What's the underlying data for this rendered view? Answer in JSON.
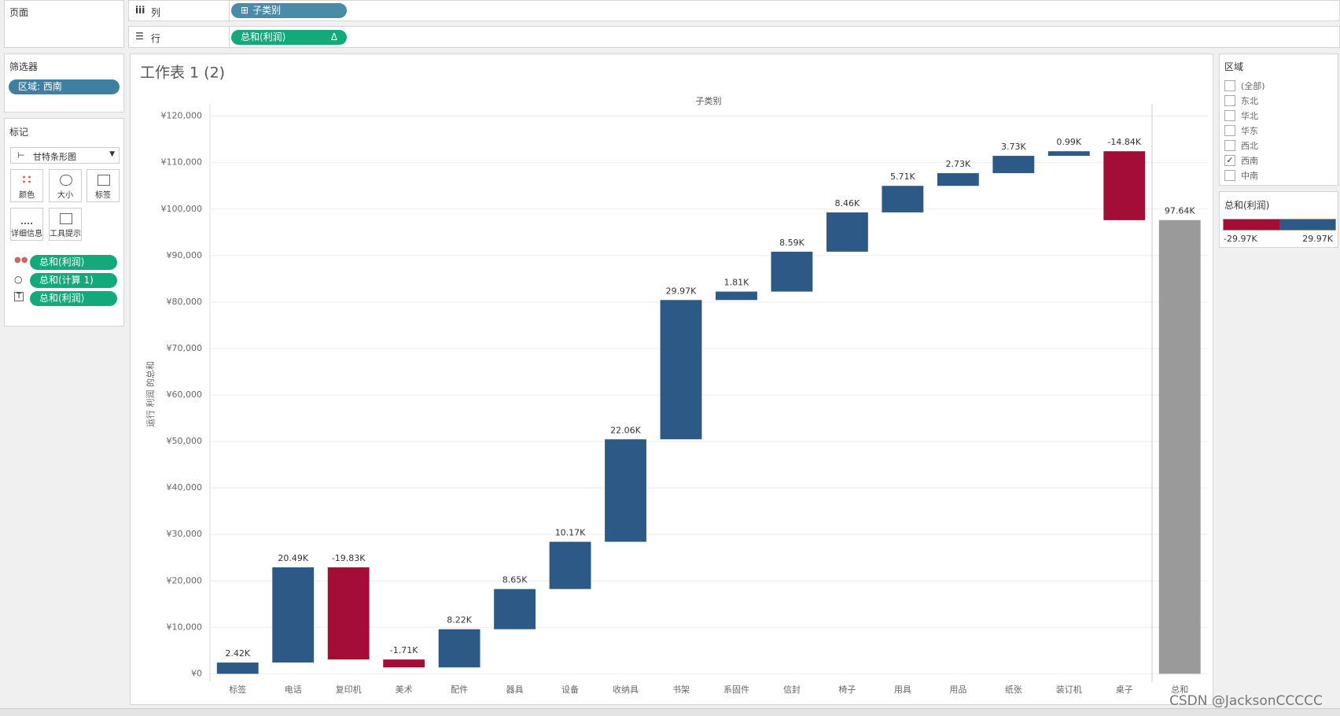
{
  "ui": {
    "pages_title": "页面",
    "columns_label": "列",
    "columns_pill": "子类别",
    "rows_label": "行",
    "rows_pill": "总和(利润)",
    "filters_title": "筛选器",
    "filter_pill": "区域: 西南",
    "marks_title": "标记",
    "mark_type": "甘特条形图",
    "mark_buttons": [
      "颜色",
      "大小",
      "标签",
      "详细信息",
      "工具提示"
    ],
    "mark_pills": [
      "总和(利润)",
      "总和(计算 1)",
      "总和(利润)"
    ],
    "region_filter": {
      "title": "区域",
      "items": [
        {
          "label": "(全部)",
          "checked": false
        },
        {
          "label": "东北",
          "checked": false
        },
        {
          "label": "华北",
          "checked": false
        },
        {
          "label": "华东",
          "checked": false
        },
        {
          "label": "西北",
          "checked": false
        },
        {
          "label": "西南",
          "checked": true
        },
        {
          "label": "中南",
          "checked": false
        }
      ]
    },
    "color_legend": {
      "title": "总和(利润)",
      "labels": [
        "-29.97K",
        "29.97K"
      ],
      "colors": [
        "#a30d36",
        "#2c5985"
      ]
    },
    "watermark": "CSDN @JacksonCCCCC"
  },
  "chart_data": {
    "type": "waterfall",
    "title": "工作表 1 (2)",
    "x_header": "子类别",
    "y_label": "运行 利润 的总和",
    "categories": [
      "标签",
      "电话",
      "复印机",
      "美术",
      "配件",
      "器具",
      "设备",
      "收纳具",
      "书架",
      "系固件",
      "信封",
      "椅子",
      "用具",
      "用品",
      "纸张",
      "装订机",
      "桌子"
    ],
    "values": [
      2420,
      20490,
      -19830,
      -1710,
      8220,
      8650,
      10170,
      22060,
      29970,
      1810,
      8590,
      8460,
      5710,
      2730,
      3730,
      990,
      -14840
    ],
    "value_labels": [
      "2.42K",
      "20.49K",
      "-19.83K",
      "-1.71K",
      "8.22K",
      "8.65K",
      "10.17K",
      "22.06K",
      "29.97K",
      "1.81K",
      "8.59K",
      "8.46K",
      "5.71K",
      "2.73K",
      "3.73K",
      "0.99K",
      "-14.84K"
    ],
    "total": {
      "category": "总和",
      "value": 97640,
      "value_label": "97.64K"
    },
    "positive_color": "#2c5985",
    "negative_color": "#a30d36",
    "total_color": "#9a9a9a",
    "ylim": [
      -1800,
      121300
    ],
    "yticks": [
      {
        "value": 0,
        "label": "¥0"
      },
      {
        "value": 10000,
        "label": "¥10,000"
      },
      {
        "value": 20000,
        "label": "¥20,000"
      },
      {
        "value": 30000,
        "label": "¥30,000"
      },
      {
        "value": 40000,
        "label": "¥40,000"
      },
      {
        "value": 50000,
        "label": "¥50,000"
      },
      {
        "value": 60000,
        "label": "¥60,000"
      },
      {
        "value": 70000,
        "label": "¥70,000"
      },
      {
        "value": 80000,
        "label": "¥80,000"
      },
      {
        "value": 90000,
        "label": "¥90,000"
      },
      {
        "value": 100000,
        "label": "¥100,000"
      },
      {
        "value": 110000,
        "label": "¥110,000"
      },
      {
        "value": 120000,
        "label": "¥120,000"
      }
    ],
    "grid": true
  }
}
